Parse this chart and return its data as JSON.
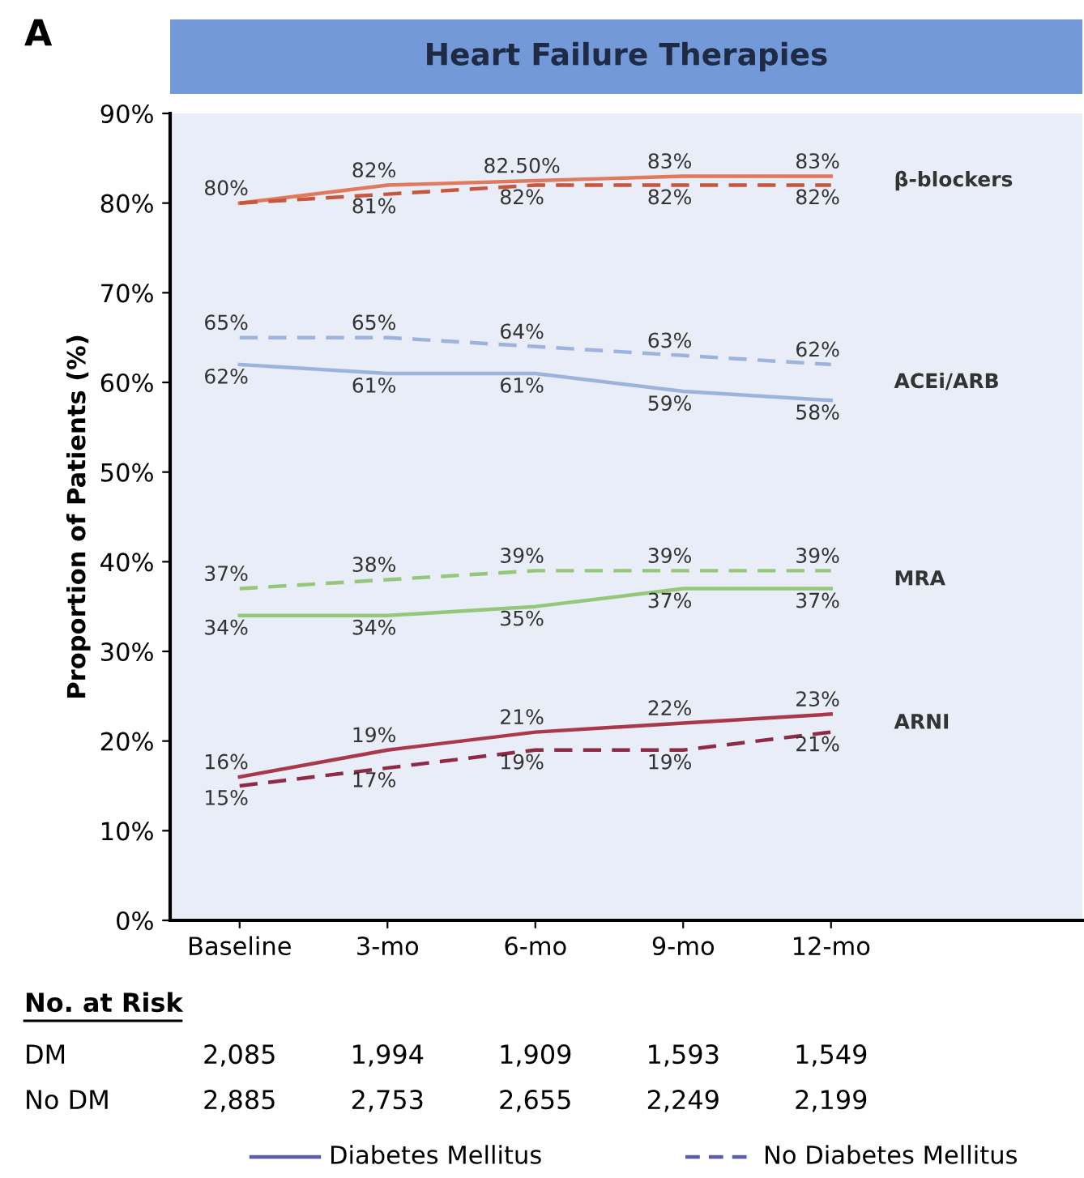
{
  "chart_data": {
    "type": "line",
    "title": "Heart Failure Therapies",
    "ylabel": "Proportion of Patients (%)",
    "categories": [
      "Baseline",
      "3-mo",
      "6-mo",
      "9-mo",
      "12-mo"
    ],
    "ylim": [
      0,
      90
    ],
    "yticks": [
      {
        "value": 0,
        "label": "0%"
      },
      {
        "value": 10,
        "label": "10%"
      },
      {
        "value": 20,
        "label": "20%"
      },
      {
        "value": 30,
        "label": "30%"
      },
      {
        "value": 40,
        "label": "40%"
      },
      {
        "value": 50,
        "label": "50%"
      },
      {
        "value": 60,
        "label": "60%"
      },
      {
        "value": 70,
        "label": "70%"
      },
      {
        "value": 80,
        "label": "80%"
      },
      {
        "value": 90,
        "label": "90%"
      }
    ],
    "grid": false,
    "marker": "none",
    "data_labels": true,
    "series": [
      {
        "color": "#e07a5f",
        "line_style": "solid",
        "values": [
          80,
          82,
          82.5,
          83,
          83
        ],
        "value_labels": [
          "80%",
          "82%",
          "82.50%",
          "83%",
          "83%"
        ]
      },
      {
        "color": "#c8553d",
        "line_style": "dashed",
        "values": [
          80,
          81,
          82,
          82,
          82
        ],
        "value_labels": [
          null,
          "81%",
          "82%",
          "82%",
          "82%"
        ]
      },
      {
        "color": "#9db3de",
        "line_style": "dashed",
        "values": [
          65,
          65,
          64,
          63,
          62
        ],
        "value_labels": [
          "65%",
          "65%",
          "64%",
          "63%",
          "62%"
        ]
      },
      {
        "color": "#9db3de",
        "line_style": "solid",
        "values": [
          62,
          61,
          61,
          59,
          58
        ],
        "value_labels": [
          "62%",
          "61%",
          "61%",
          "59%",
          "58%"
        ]
      },
      {
        "color": "#94c77a",
        "line_style": "dashed",
        "values": [
          37,
          38,
          39,
          39,
          39
        ],
        "value_labels": [
          "37%",
          "38%",
          "39%",
          "39%",
          "39%"
        ]
      },
      {
        "color": "#94c77a",
        "line_style": "solid",
        "values": [
          34,
          34,
          35,
          37,
          37
        ],
        "value_labels": [
          "34%",
          "34%",
          "35%",
          "37%",
          "37%"
        ]
      },
      {
        "color": "#a8384a",
        "line_style": "solid",
        "values": [
          16,
          19,
          21,
          22,
          23
        ],
        "value_labels": [
          "16%",
          "19%",
          "21%",
          "22%",
          "23%"
        ]
      },
      {
        "color": "#8e2a45",
        "line_style": "dashed",
        "values": [
          15,
          17,
          19,
          19,
          21
        ],
        "value_labels": [
          "15%",
          "17%",
          "19%",
          "19%",
          "21%"
        ]
      }
    ],
    "annotations": [
      "β-blockers",
      "ACEi/ARB",
      "MRA",
      "ARNI",
      "A",
      "No. at Risk",
      "DM",
      "2,085",
      "1,994",
      "1,909",
      "1,593",
      "1,549",
      "No DM",
      "2,885",
      "2,753",
      "2,655",
      "2,249",
      "2,199",
      "Diabetes Mellitus",
      "No Diabetes Mellitus"
    ]
  }
}
